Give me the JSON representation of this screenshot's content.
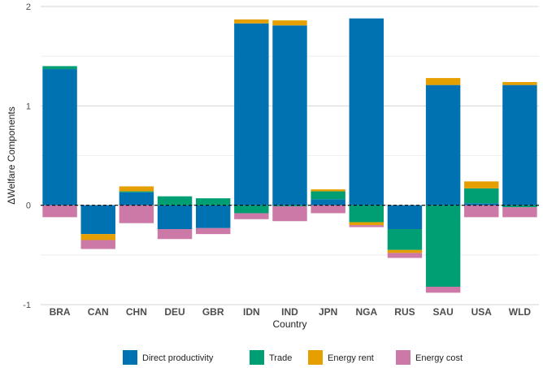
{
  "chart_data": {
    "type": "bar",
    "stacked": true,
    "xlabel": "Country",
    "ylabel": "ΔWelfare Components",
    "ylim": [
      -1,
      2
    ],
    "yticks": [
      -1,
      0,
      1,
      2
    ],
    "grid": true,
    "reference_line": {
      "y": 0,
      "style": "dashed"
    },
    "legend_position": "bottom",
    "categories": [
      "BRA",
      "CAN",
      "CHN",
      "DEU",
      "GBR",
      "IDN",
      "IND",
      "JPN",
      "NGA",
      "RUS",
      "SAU",
      "USA",
      "WLD"
    ],
    "series": [
      {
        "name": "Direct productivity",
        "color": "#0072B2",
        "values": [
          1.37,
          -0.29,
          0.13,
          -0.24,
          -0.23,
          1.83,
          1.81,
          0.06,
          1.88,
          -0.24,
          1.21,
          0.02,
          1.21
        ]
      },
      {
        "name": "Trade",
        "color": "#009E73",
        "values": [
          0.03,
          0.0,
          0.01,
          0.09,
          0.07,
          -0.08,
          -0.01,
          0.08,
          -0.17,
          -0.21,
          -0.82,
          0.15,
          -0.02
        ]
      },
      {
        "name": "Energy rent",
        "color": "#E69F00",
        "values": [
          0.0,
          -0.06,
          0.05,
          0.0,
          0.0,
          0.04,
          0.05,
          0.02,
          -0.03,
          -0.03,
          0.07,
          0.07,
          0.03
        ]
      },
      {
        "name": "Energy cost",
        "color": "#CC79A7",
        "values": [
          -0.12,
          -0.09,
          -0.18,
          -0.1,
          -0.06,
          -0.06,
          -0.15,
          -0.08,
          -0.02,
          -0.05,
          -0.06,
          -0.12,
          -0.1
        ]
      }
    ]
  }
}
